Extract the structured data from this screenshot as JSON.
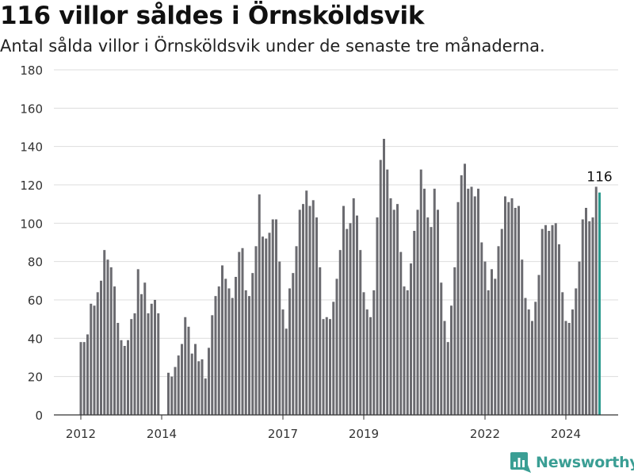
{
  "title": "116 villor såldes i Örnsköldsvik",
  "subtitle": "Antal sålda villor i Örnsköldsvik under de senaste tre månaderna.",
  "brand": "Newsworthy",
  "colors": {
    "bar": "#6b6b70",
    "highlight": "#2b9a8e",
    "brand": "#3a9e94",
    "grid": "#dddddd"
  },
  "chart_data": {
    "type": "bar",
    "title": "116 villor såldes i Örnsköldsvik",
    "subtitle": "Antal sålda villor i Örnsköldsvik under de senaste tre månaderna.",
    "xlabel": "",
    "ylabel": "",
    "ylim": [
      0,
      180
    ],
    "yticks": [
      0,
      20,
      40,
      60,
      80,
      100,
      120,
      140,
      160,
      180
    ],
    "xtick_labels": [
      "2012",
      "2014",
      "2017",
      "2019",
      "2022",
      "2024"
    ],
    "grid": true,
    "annotation": "116",
    "values": [
      38,
      38,
      42,
      58,
      57,
      64,
      70,
      86,
      81,
      77,
      67,
      48,
      39,
      36,
      39,
      50,
      53,
      76,
      63,
      69,
      53,
      58,
      60,
      53,
      0,
      0,
      22,
      20,
      25,
      31,
      37,
      51,
      46,
      32,
      37,
      28,
      29,
      19,
      35,
      52,
      62,
      67,
      78,
      71,
      66,
      61,
      72,
      85,
      87,
      65,
      62,
      74,
      88,
      115,
      93,
      92,
      95,
      102,
      102,
      80,
      55,
      45,
      66,
      74,
      88,
      107,
      110,
      117,
      109,
      112,
      103,
      77,
      50,
      51,
      50,
      59,
      71,
      86,
      109,
      97,
      100,
      113,
      104,
      86,
      64,
      55,
      51,
      65,
      103,
      133,
      144,
      128,
      113,
      107,
      110,
      85,
      67,
      65,
      79,
      96,
      107,
      128,
      118,
      103,
      98,
      118,
      107,
      69,
      49,
      38,
      57,
      77,
      111,
      125,
      131,
      118,
      119,
      114,
      118,
      90,
      80,
      65,
      76,
      71,
      88,
      97,
      114,
      111,
      113,
      108,
      109,
      81,
      61,
      55,
      49,
      59,
      73,
      97,
      99,
      96,
      99,
      100,
      89,
      64,
      49,
      48,
      55,
      66,
      80,
      102,
      108,
      101,
      103,
      119,
      116
    ]
  }
}
